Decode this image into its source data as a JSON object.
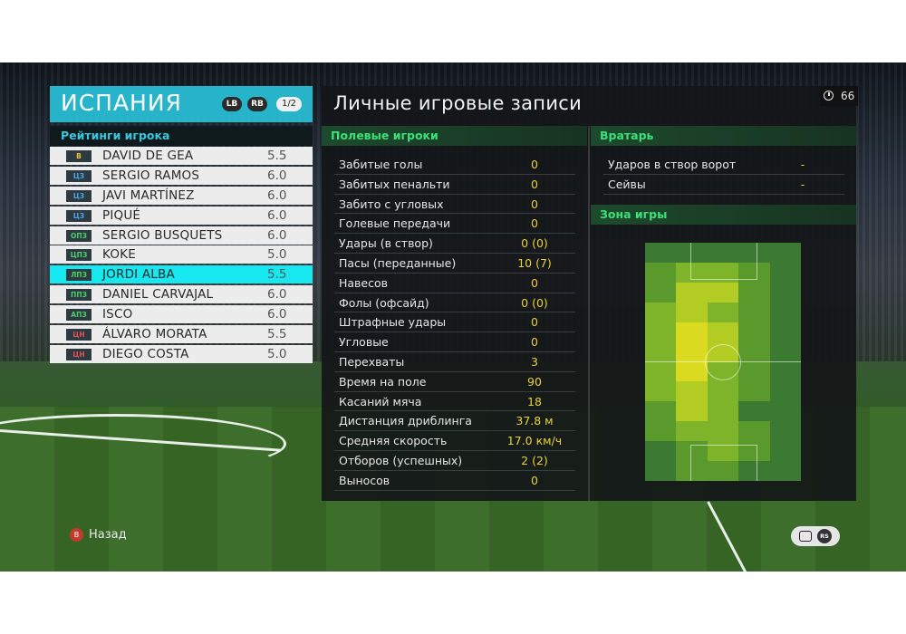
{
  "team": {
    "name": "ИСПАНИЯ",
    "lb_label": "LB",
    "rb_label": "RB",
    "page": "1/2"
  },
  "ratings_title": "Рейтинги игрока",
  "players": [
    {
      "pos": "В",
      "pos_color": "#f2c230",
      "name": "DAVID DE GEA",
      "rating": "5.5",
      "selected": false
    },
    {
      "pos": "ЦЗ",
      "pos_color": "#4aa8e8",
      "name": "SERGIO RAMOS",
      "rating": "6.0",
      "selected": false
    },
    {
      "pos": "ЦЗ",
      "pos_color": "#4aa8e8",
      "name": "JAVI MARTÍNEZ",
      "rating": "6.0",
      "selected": false
    },
    {
      "pos": "ЦЗ",
      "pos_color": "#4aa8e8",
      "name": "PIQUÉ",
      "rating": "6.0",
      "selected": false
    },
    {
      "pos": "ОПЗ",
      "pos_color": "#4fd06a",
      "name": "SERGIO BUSQUETS",
      "rating": "6.0",
      "selected": false
    },
    {
      "pos": "ЦПЗ",
      "pos_color": "#4fd06a",
      "name": "KOKE",
      "rating": "5.0",
      "selected": false
    },
    {
      "pos": "ЛПЗ",
      "pos_color": "#4fd06a",
      "name": "JORDI ALBA",
      "rating": "5.5",
      "selected": true
    },
    {
      "pos": "ППЗ",
      "pos_color": "#4fd06a",
      "name": "DANIEL CARVAJAL",
      "rating": "6.0",
      "selected": false
    },
    {
      "pos": "АПЗ",
      "pos_color": "#4fd06a",
      "name": "ISCO",
      "rating": "6.0",
      "selected": false
    },
    {
      "pos": "ЦН",
      "pos_color": "#e85050",
      "name": "ÁLVARO MORATA",
      "rating": "5.5",
      "selected": false
    },
    {
      "pos": "ЦН",
      "pos_color": "#e85050",
      "name": "DIEGO COSTA",
      "rating": "5.0",
      "selected": false
    }
  ],
  "main_title": "Личные игровые записи",
  "timer": "66",
  "field_section": "Полевые игроки",
  "field_stats": [
    {
      "label": "Забитые голы",
      "value": "0"
    },
    {
      "label": "Забитых пенальти",
      "value": "0"
    },
    {
      "label": "Забито с угловых",
      "value": "0"
    },
    {
      "label": "Голевые передачи",
      "value": "0"
    },
    {
      "label": "Удары (в створ)",
      "value": "0 (0)"
    },
    {
      "label": "Пасы (переданные)",
      "value": "10 (7)"
    },
    {
      "label": "Навесов",
      "value": "0"
    },
    {
      "label": "Фолы (офсайд)",
      "value": "0 (0)"
    },
    {
      "label": "Штрафные удары",
      "value": "0"
    },
    {
      "label": "Угловые",
      "value": "0"
    },
    {
      "label": "Перехваты",
      "value": "3"
    },
    {
      "label": "Время на поле",
      "value": "90"
    },
    {
      "label": "Касаний мяча",
      "value": "18"
    },
    {
      "label": "Дистанция дриблинга",
      "value": "37.8 м"
    },
    {
      "label": "Средняя скорость",
      "value": "17.0 км/ч"
    },
    {
      "label": "Отборов (успешных)",
      "value": "2 (2)"
    },
    {
      "label": "Выносов",
      "value": "0"
    }
  ],
  "gk_section": "Вратарь",
  "gk_stats": [
    {
      "label": "Ударов в створ ворот",
      "value": "-"
    },
    {
      "label": "Сейвы",
      "value": "-"
    }
  ],
  "zone_section": "Зона игры",
  "heatmap": {
    "cols": 5,
    "rows": 12,
    "intensity": [
      [
        0,
        0,
        0,
        0,
        0
      ],
      [
        1,
        2,
        2,
        1,
        0
      ],
      [
        1,
        3,
        3,
        1,
        0
      ],
      [
        2,
        3,
        2,
        1,
        0
      ],
      [
        2,
        4,
        3,
        1,
        0
      ],
      [
        2,
        4,
        3,
        1,
        0
      ],
      [
        2,
        4,
        2,
        1,
        0
      ],
      [
        2,
        3,
        2,
        1,
        0
      ],
      [
        1,
        3,
        2,
        0,
        0
      ],
      [
        1,
        2,
        2,
        1,
        0
      ],
      [
        0,
        1,
        2,
        1,
        0
      ],
      [
        0,
        1,
        1,
        0,
        0
      ]
    ],
    "colors": [
      "#3c7a34",
      "#5a9a2c",
      "#7db42a",
      "#b2cc24",
      "#dada20"
    ]
  },
  "back_label": "Назад",
  "back_button": "B",
  "rs_label": "RS"
}
